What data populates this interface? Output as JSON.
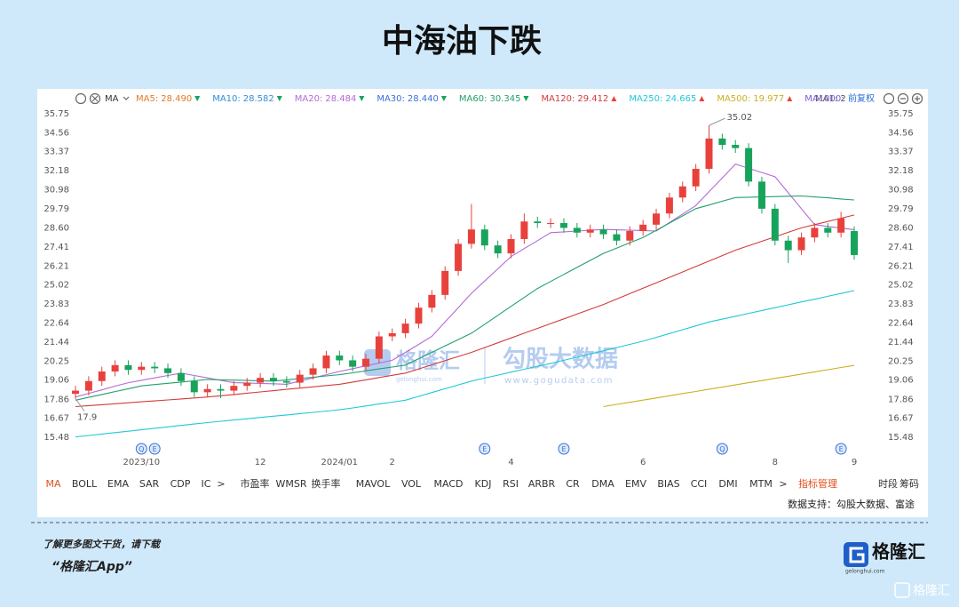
{
  "header": {
    "title": "中海油下跌"
  },
  "chart_data": {
    "type": "candlestick",
    "toolbar": {
      "indicator": "MA",
      "ma1": "MA1: 2",
      "adjust": "前复权"
    },
    "categories": [
      null,
      null,
      null,
      null,
      null,
      "2023/10",
      null,
      null,
      null,
      null,
      null,
      null,
      null,
      null,
      "12",
      null,
      null,
      null,
      null,
      null,
      "2024/01",
      null,
      null,
      null,
      "2",
      null,
      null,
      null,
      null,
      null,
      null,
      null,
      null,
      "4",
      null,
      null,
      null,
      null,
      null,
      null,
      null,
      null,
      null,
      "6",
      null,
      null,
      null,
      null,
      null,
      null,
      null,
      null,
      null,
      "8",
      null,
      null,
      null,
      null,
      null,
      "9"
    ],
    "open": [
      18.2,
      18.4,
      19.0,
      19.6,
      20.0,
      19.7,
      19.9,
      19.8,
      19.5,
      19.0,
      18.3,
      18.5,
      18.4,
      18.7,
      18.9,
      19.2,
      19.0,
      18.9,
      19.4,
      19.8,
      20.6,
      20.3,
      19.9,
      20.4,
      21.8,
      22.0,
      22.6,
      23.6,
      24.4,
      25.9,
      27.6,
      28.5,
      27.5,
      27.0,
      27.9,
      29.0,
      28.9,
      28.9,
      28.6,
      28.3,
      28.5,
      28.2,
      27.8,
      28.4,
      28.8,
      29.5,
      30.5,
      31.2,
      32.3,
      34.2,
      33.8,
      33.6,
      31.5,
      29.8,
      27.8,
      27.2,
      28.0,
      28.6,
      28.3,
      28.4
    ],
    "high": [
      18.7,
      19.3,
      19.9,
      20.3,
      20.3,
      20.2,
      20.2,
      20.1,
      19.8,
      19.3,
      18.8,
      18.8,
      19.0,
      19.2,
      19.5,
      19.5,
      19.3,
      19.7,
      20.1,
      20.9,
      20.9,
      20.6,
      20.7,
      22.1,
      22.3,
      22.9,
      23.9,
      24.7,
      26.2,
      27.9,
      30.1,
      28.8,
      27.8,
      28.2,
      29.5,
      29.3,
      29.2,
      29.2,
      28.9,
      28.8,
      28.8,
      28.5,
      28.7,
      29.1,
      29.8,
      30.8,
      31.5,
      32.6,
      35.02,
      34.5,
      34.1,
      33.9,
      31.8,
      30.1,
      28.1,
      28.3,
      28.9,
      28.9,
      29.6,
      28.7
    ],
    "low": [
      17.9,
      18.1,
      18.7,
      19.3,
      19.4,
      19.4,
      19.5,
      19.2,
      18.7,
      18.0,
      18.0,
      17.93,
      18.1,
      18.4,
      18.6,
      18.7,
      18.6,
      18.6,
      19.1,
      19.5,
      20.0,
      19.6,
      19.6,
      20.1,
      21.5,
      21.7,
      22.3,
      23.3,
      24.1,
      25.6,
      27.3,
      27.2,
      26.7,
      26.7,
      27.6,
      28.6,
      28.6,
      28.3,
      28.0,
      28.0,
      27.9,
      27.5,
      27.5,
      28.1,
      28.5,
      29.2,
      30.2,
      30.9,
      32.0,
      33.5,
      33.3,
      31.2,
      29.5,
      27.5,
      26.4,
      26.9,
      27.7,
      28.0,
      28.0,
      26.6
    ],
    "close": [
      18.4,
      19.0,
      19.6,
      20.0,
      19.7,
      19.9,
      19.8,
      19.5,
      19.0,
      18.3,
      18.5,
      18.4,
      18.7,
      18.9,
      19.2,
      19.0,
      18.9,
      19.4,
      19.8,
      20.6,
      20.3,
      19.9,
      20.4,
      21.8,
      22.0,
      22.6,
      23.6,
      24.4,
      25.9,
      27.6,
      28.5,
      27.5,
      27.0,
      27.9,
      29.0,
      28.9,
      28.9,
      28.6,
      28.3,
      28.5,
      28.2,
      27.8,
      28.4,
      28.8,
      29.5,
      30.5,
      31.2,
      32.3,
      34.2,
      33.8,
      33.6,
      31.5,
      29.8,
      27.8,
      27.2,
      28.0,
      28.6,
      28.3,
      29.2,
      26.9
    ],
    "up_color": "#e8413c",
    "down_color": "#17a35c",
    "series": [
      {
        "name": "MA5:",
        "color": "#e07b2a",
        "readout": "28.490",
        "trend": "down"
      },
      {
        "name": "MA10:",
        "color": "#2f8fd8",
        "readout": "28.582",
        "trend": "down"
      },
      {
        "name": "MA20:",
        "color": "#b46ad6",
        "readout": "28.484",
        "trend": "down",
        "values": [
          18.0,
          18.23,
          18.45,
          18.68,
          18.9,
          19.05,
          19.2,
          19.35,
          19.5,
          19.35,
          19.2,
          19.05,
          18.9,
          18.88,
          18.85,
          18.83,
          18.8,
          19.0,
          19.2,
          19.4,
          19.6,
          19.78,
          19.95,
          20.13,
          20.3,
          20.8,
          21.3,
          21.8,
          22.7,
          23.6,
          24.5,
          25.27,
          26.03,
          26.8,
          27.3,
          27.8,
          28.3,
          28.35,
          28.4,
          28.45,
          28.5,
          28.48,
          28.45,
          28.43,
          28.4,
          28.93,
          29.47,
          30.0,
          30.87,
          31.73,
          32.6,
          32.33,
          32.07,
          31.8,
          30.8,
          29.8,
          28.8,
          28.69,
          28.59,
          28.48
        ]
      },
      {
        "name": "MA30:",
        "color": "#3a6fd8",
        "readout": "28.440",
        "trend": "down"
      },
      {
        "name": "MA60:",
        "color": "#22a06b",
        "readout": "30.345",
        "trend": "down",
        "values": [
          17.8,
          17.98,
          18.16,
          18.34,
          18.52,
          18.7,
          18.78,
          18.86,
          18.94,
          19.02,
          19.1,
          19.08,
          19.06,
          19.04,
          19.02,
          19.0,
          19.08,
          19.16,
          19.24,
          19.32,
          19.4,
          19.52,
          19.64,
          19.76,
          19.88,
          20.0,
          20.4,
          20.8,
          21.2,
          21.6,
          22.0,
          22.56,
          23.12,
          23.68,
          24.24,
          24.8,
          25.24,
          25.68,
          26.12,
          26.56,
          27.0,
          27.33,
          27.67,
          28.0,
          28.45,
          28.9,
          29.35,
          29.8,
          30.03,
          30.27,
          30.5,
          30.52,
          30.54,
          30.56,
          30.58,
          30.6,
          30.54,
          30.48,
          30.41,
          30.35
        ]
      },
      {
        "name": "MA120:",
        "color": "#d23b3b",
        "readout": "29.412",
        "trend": "up",
        "values": [
          17.4,
          17.46,
          17.52,
          17.58,
          17.64,
          17.7,
          17.76,
          17.82,
          17.88,
          17.94,
          18.0,
          18.08,
          18.16,
          18.24,
          18.32,
          18.4,
          18.48,
          18.56,
          18.64,
          18.72,
          18.8,
          18.94,
          19.08,
          19.22,
          19.36,
          19.5,
          19.76,
          20.02,
          20.28,
          20.54,
          20.8,
          21.1,
          21.4,
          21.7,
          22.0,
          22.3,
          22.6,
          22.9,
          23.2,
          23.5,
          23.8,
          24.14,
          24.48,
          24.82,
          25.16,
          25.5,
          25.84,
          26.18,
          26.52,
          26.86,
          27.2,
          27.48,
          27.76,
          28.04,
          28.32,
          28.6,
          28.8,
          29.0,
          29.2,
          29.41
        ]
      },
      {
        "name": "MA250:",
        "color": "#20c8d8",
        "readout": "24.665",
        "trend": "up",
        "values": [
          15.5,
          15.59,
          15.68,
          15.77,
          15.86,
          15.95,
          16.04,
          16.13,
          16.22,
          16.31,
          16.4,
          16.48,
          16.56,
          16.64,
          16.72,
          16.8,
          16.88,
          16.96,
          17.04,
          17.12,
          17.2,
          17.32,
          17.44,
          17.56,
          17.68,
          17.8,
          18.04,
          18.28,
          18.52,
          18.76,
          19.0,
          19.19,
          19.37,
          19.56,
          19.74,
          19.93,
          20.11,
          20.3,
          20.5,
          20.7,
          20.9,
          21.1,
          21.3,
          21.5,
          21.74,
          21.98,
          22.22,
          22.46,
          22.7,
          22.88,
          23.06,
          23.24,
          23.42,
          23.6,
          23.78,
          23.96,
          24.13,
          24.31,
          24.49,
          24.67
        ]
      },
      {
        "name": "MA500:",
        "color": "#c9b020",
        "readout": "19.977",
        "trend": "up",
        "values": [
          null,
          null,
          null,
          null,
          null,
          null,
          null,
          null,
          null,
          null,
          null,
          null,
          null,
          null,
          null,
          null,
          null,
          null,
          null,
          null,
          null,
          null,
          null,
          null,
          null,
          null,
          null,
          null,
          null,
          null,
          null,
          null,
          null,
          null,
          null,
          null,
          null,
          null,
          null,
          null,
          17.4,
          17.54,
          17.67,
          17.81,
          17.94,
          18.08,
          18.22,
          18.35,
          18.49,
          18.62,
          18.76,
          18.9,
          19.03,
          19.17,
          19.3,
          19.44,
          19.58,
          19.71,
          19.85,
          19.98
        ]
      },
      {
        "name": "MA1000:",
        "color": "#7b5bd6"
      }
    ],
    "ylim": [
      15.48,
      35.75
    ],
    "yticks": [
      35.75,
      34.56,
      33.37,
      32.18,
      30.98,
      29.79,
      {
        "value": 28.6,
        "label": "28.60"
      },
      27.41,
      26.21,
      25.02,
      23.83,
      22.64,
      21.44,
      20.25,
      19.06,
      17.86,
      16.67,
      15.48
    ],
    "grid": false,
    "events": [
      {
        "at": 5,
        "label": "Q"
      },
      {
        "at": 6,
        "label": "E"
      },
      {
        "at": 31,
        "label": "E"
      },
      {
        "at": 37,
        "label": "E"
      },
      {
        "at": 49,
        "label": "Q"
      },
      {
        "at": 58,
        "label": "E"
      }
    ],
    "watermark": {
      "brand": "格隆汇",
      "brand_url": "gelonghui.com",
      "data": "勾股大数据",
      "data_url": "www.gogudata.com"
    }
  },
  "tabs": [
    "MA",
    "BOLL",
    "EMA",
    "SAR",
    "CDP",
    "IC",
    ">",
    "市盈率",
    "WMSR",
    "换手率",
    "MAVOL",
    "VOL",
    "MACD",
    "KDJ",
    "RSI",
    "ARBR",
    "CR",
    "DMA",
    "EMV",
    "BIAS",
    "CCI",
    "DMI",
    "MTM",
    ">",
    "指标管理",
    "时段",
    "筹码"
  ],
  "source": "数据支持：勾股大数据、富途",
  "footer": {
    "line1": "了解更多图文干货，请下载",
    "line2": "“格隆汇App”",
    "logo": "格隆汇",
    "logo_url": "gelonghui.com",
    "corner": "格隆汇"
  }
}
